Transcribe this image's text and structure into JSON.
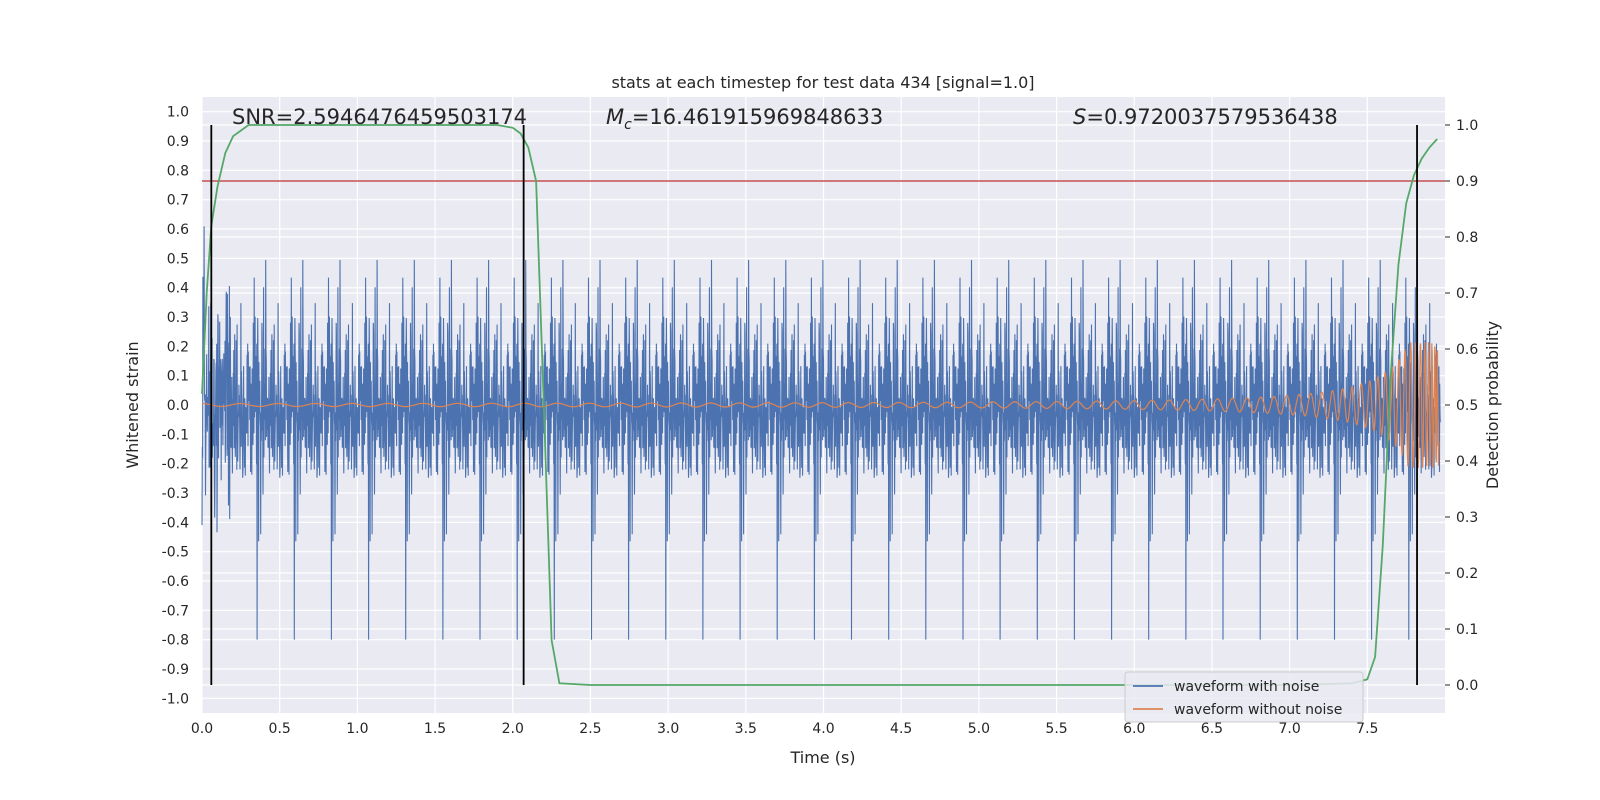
{
  "chart_data": {
    "type": "line",
    "title": "stats at each timestep for test data 434 [signal=1.0]",
    "xlabel": "Time (s)",
    "ylabel_left": "Whitened strain",
    "ylabel_right": "Detection probability",
    "xlim": [
      0,
      8
    ],
    "ylim_left": [
      -1.05,
      1.05
    ],
    "ylim_right": [
      -0.05,
      1.05
    ],
    "x_ticks": [
      "0.0",
      "0.5",
      "1.0",
      "1.5",
      "2.0",
      "2.5",
      "3.0",
      "3.5",
      "4.0",
      "4.5",
      "5.0",
      "5.5",
      "6.0",
      "6.5",
      "7.0",
      "7.5"
    ],
    "y_left_ticks": [
      "1.0",
      "0.9",
      "0.8",
      "0.7",
      "0.6",
      "0.5",
      "0.4",
      "0.3",
      "0.2",
      "0.1",
      "0.0",
      "-0.1",
      "-0.2",
      "-0.3",
      "-0.4",
      "-0.5",
      "-0.6",
      "-0.7",
      "-0.8",
      "-0.9",
      "-1.0"
    ],
    "y_right_ticks": [
      "1.0",
      "0.9",
      "0.8",
      "0.7",
      "0.6",
      "0.5",
      "0.4",
      "0.3",
      "0.2",
      "0.1",
      "0.0"
    ],
    "annotations": {
      "snr": "SNR=2.5946476459503174",
      "mc_symbol": "M",
      "mc_sub": "c",
      "mc_value": "=16.461915969848633",
      "s_symbol": "S",
      "s_value": "=0.9720037579536438"
    },
    "threshold": {
      "value": 0.9,
      "axis": "right",
      "color": "#c44e52"
    },
    "detection_boundaries_s": [
      0.06,
      2.07,
      7.82
    ],
    "legend": {
      "placement": "lower-right",
      "entries": [
        "waveform with noise",
        "waveform without noise"
      ]
    },
    "series": [
      {
        "name": "waveform with noise",
        "axis": "left",
        "color": "#4c72b0",
        "style": "dense noise, core amplitude about ±0.38, peaks up to about ±0.95"
      },
      {
        "name": "waveform without noise",
        "axis": "left",
        "color": "#dd8452",
        "style": "chirp, amplitude about 0.005 rising to about 0.21 at 7.95 s"
      },
      {
        "name": "detection probability",
        "axis": "right",
        "color": "#55a868",
        "x": [
          0.0,
          0.03,
          0.06,
          0.1,
          0.15,
          0.2,
          0.25,
          0.3,
          0.4,
          0.6,
          1.0,
          1.5,
          1.9,
          2.0,
          2.05,
          2.1,
          2.15,
          2.2,
          2.25,
          2.3,
          2.5,
          3.0,
          4.0,
          5.0,
          6.0,
          7.0,
          7.4,
          7.5,
          7.55,
          7.6,
          7.65,
          7.7,
          7.75,
          7.8,
          7.85,
          7.9,
          7.95
        ],
        "y": [
          0.52,
          0.7,
          0.82,
          0.89,
          0.95,
          0.98,
          0.99,
          1.0,
          1.0,
          1.0,
          1.0,
          1.0,
          1.0,
          0.995,
          0.985,
          0.96,
          0.9,
          0.5,
          0.08,
          0.003,
          0.0,
          0.0,
          0.0,
          0.0,
          0.0,
          0.0,
          0.003,
          0.01,
          0.05,
          0.25,
          0.55,
          0.75,
          0.86,
          0.91,
          0.94,
          0.96,
          0.975
        ]
      }
    ]
  }
}
